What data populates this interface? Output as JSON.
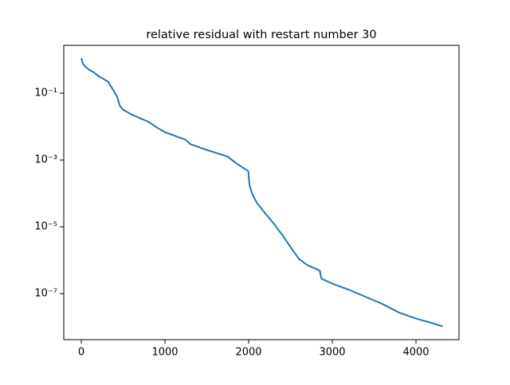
{
  "chart_data": {
    "type": "line",
    "title": "relative residual with restart number 30",
    "x": [
      0,
      20,
      50,
      100,
      150,
      200,
      260,
      320,
      380,
      430,
      460,
      500,
      600,
      800,
      900,
      1000,
      1250,
      1300,
      1500,
      1750,
      1850,
      1950,
      1995,
      2010,
      2040,
      2100,
      2200,
      2300,
      2400,
      2500,
      2600,
      2700,
      2850,
      2870,
      3000,
      3200,
      3400,
      3600,
      3800,
      4000,
      4200,
      4320
    ],
    "values": [
      1.1,
      0.76,
      0.61,
      0.49,
      0.42,
      0.33,
      0.27,
      0.22,
      0.125,
      0.076,
      0.042,
      0.032,
      0.023,
      0.014,
      0.0095,
      0.0068,
      0.004,
      0.003,
      0.002,
      0.00126,
      0.0008,
      0.00055,
      0.00047,
      0.00018,
      0.0001,
      5.1e-05,
      2.5e-05,
      1.25e-05,
      5.8e-06,
      2.5e-06,
      1.1e-06,
      7.2e-07,
      4.9e-07,
      2.8e-07,
      2e-07,
      1.3e-07,
      8e-08,
      4.9e-08,
      2.7e-08,
      1.8e-08,
      1.3e-08,
      1.05e-08
    ],
    "color": "#1f77b4",
    "log_y": true,
    "xlim": [
      -210,
      4514
    ],
    "xticks": [
      0,
      1000,
      2000,
      3000,
      4000
    ],
    "ylim": [
      2.7,
      4.2e-09
    ],
    "yticks": [
      {
        "value": 0.1,
        "label": "10⁻¹"
      },
      {
        "value": 0.001,
        "label": "10⁻³"
      },
      {
        "value": 1e-05,
        "label": "10⁻⁵"
      },
      {
        "value": 1e-07,
        "label": "10⁻⁷"
      }
    ]
  }
}
